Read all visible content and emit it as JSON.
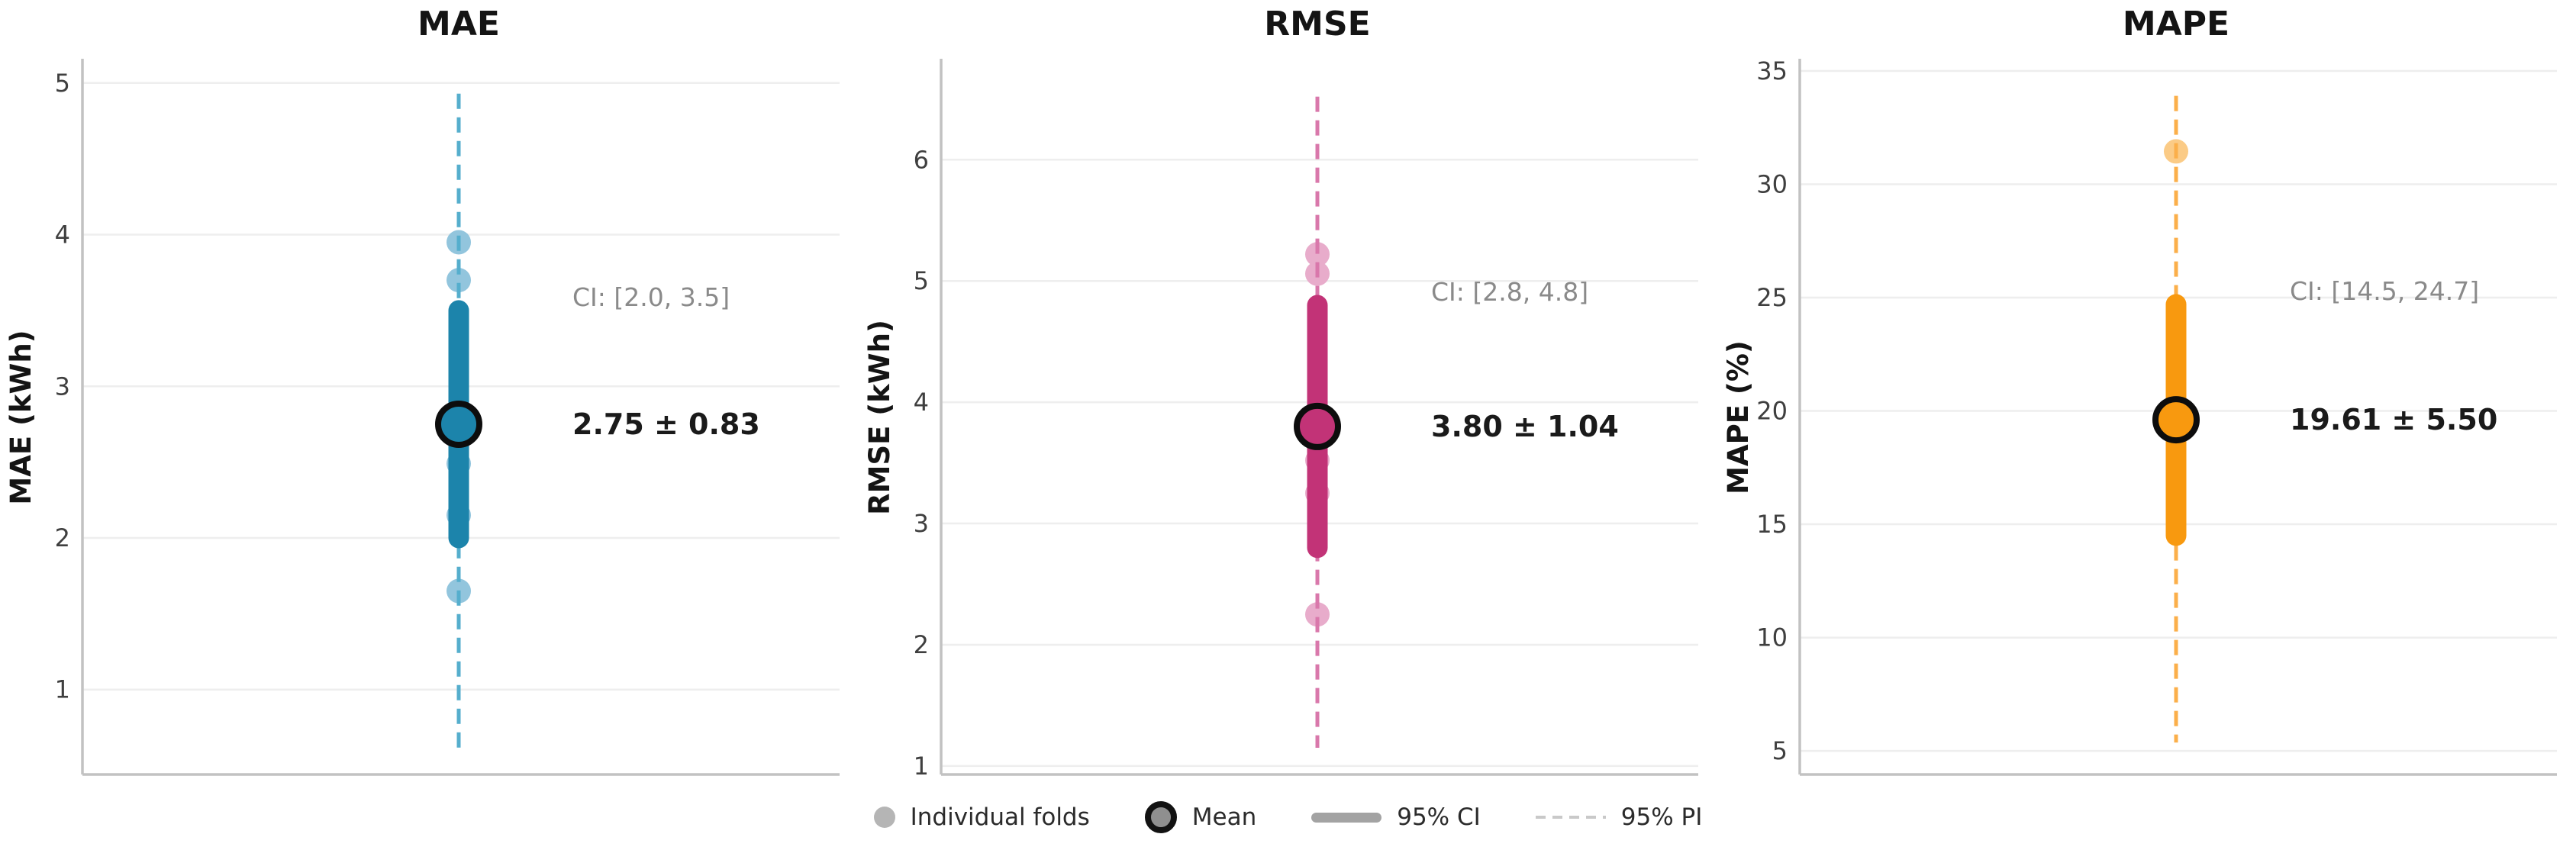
{
  "figure": {
    "background": "#ffffff"
  },
  "legend": {
    "items": [
      {
        "label": "Individual folds",
        "marker": "fold-dot",
        "color": "#b5b5b5"
      },
      {
        "label": "Mean",
        "marker": "mean-circle",
        "color": "#8f8f8f",
        "ring_color": "#121212"
      },
      {
        "label": "95% CI",
        "marker": "thick-line",
        "color": "#a3a3a3"
      },
      {
        "label": "95% PI",
        "marker": "dashed-line",
        "color": "#c9c9c9"
      }
    ]
  },
  "chart_data": [
    {
      "type": "scatter",
      "title": "MAE",
      "ylabel": "MAE (kWh)",
      "yticks": [
        1,
        2,
        3,
        4,
        5
      ],
      "ylim": [
        0.44,
        5.15
      ],
      "grid": true,
      "mean": 2.75,
      "sd": 0.83,
      "ci95": [
        2.0,
        3.5
      ],
      "pi95": [
        0.61,
        4.93
      ],
      "visible_fold_values": [
        3.95,
        3.7,
        2.49,
        2.15,
        1.65
      ],
      "annotations": {
        "ci": "CI: [2.0, 3.5]",
        "mean": "2.75 ± 0.83"
      },
      "colors": {
        "main": "#1c84ab",
        "fold": "#92c5dd",
        "dash": "#55aecd"
      }
    },
    {
      "type": "scatter",
      "title": "RMSE",
      "ylabel": "RMSE (kWh)",
      "yticks": [
        1,
        2,
        3,
        4,
        5,
        6
      ],
      "ylim": [
        0.93,
        6.82
      ],
      "grid": true,
      "mean": 3.8,
      "sd": 1.04,
      "ci95": [
        2.8,
        4.8
      ],
      "pi95": [
        1.15,
        6.52
      ],
      "visible_fold_values": [
        5.22,
        5.06,
        3.52,
        3.25,
        2.25
      ],
      "annotations": {
        "ci": "CI: [2.8, 4.8]",
        "mean": "3.80 ± 1.04"
      },
      "colors": {
        "main": "#c23377",
        "fold": "#e8accb",
        "dash": "#d978ab"
      }
    },
    {
      "type": "scatter",
      "title": "MAPE",
      "ylabel": "MAPE (%)",
      "yticks": [
        5,
        10,
        15,
        20,
        25,
        30,
        35
      ],
      "ylim": [
        3.96,
        35.47
      ],
      "grid": true,
      "mean": 19.61,
      "sd": 5.5,
      "ci95": [
        14.5,
        24.7
      ],
      "pi95": [
        5.37,
        33.9
      ],
      "visible_fold_values": [
        31.45
      ],
      "annotations": {
        "ci": "CI: [14.5, 24.7]",
        "mean": "19.61 ± 5.50"
      },
      "colors": {
        "main": "#f8990f",
        "fold": "#fbcb86",
        "dash": "#fbaf4a"
      }
    }
  ]
}
